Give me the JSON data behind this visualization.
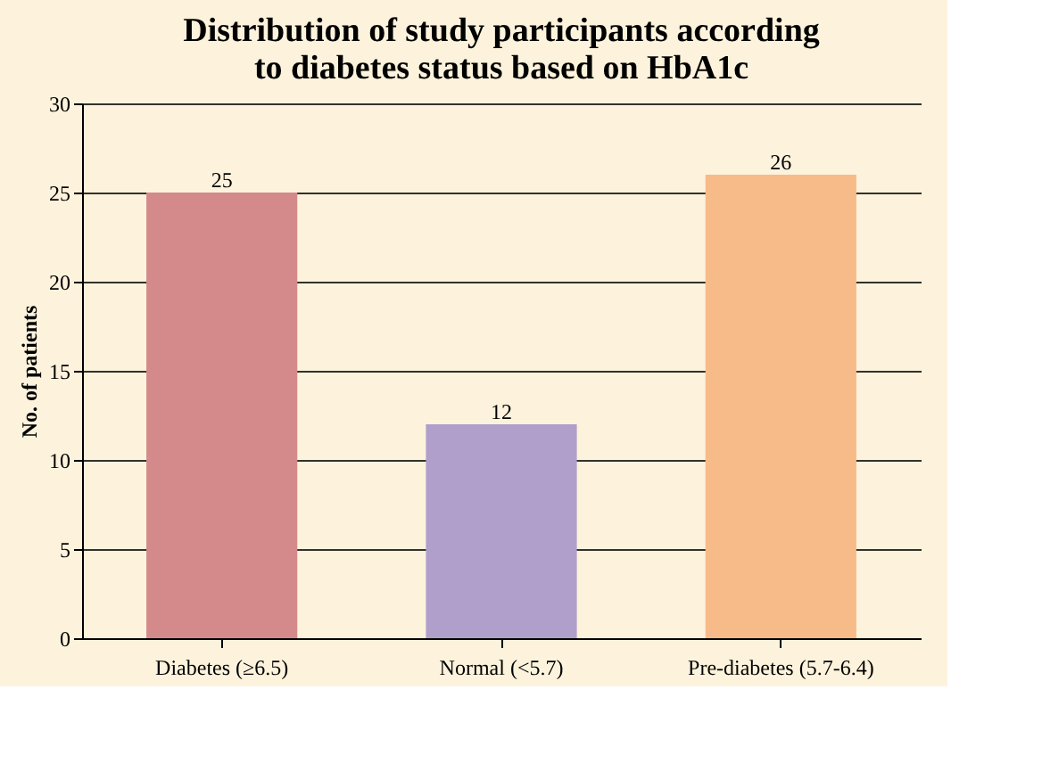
{
  "chart_data": {
    "type": "bar",
    "title": "Distribution of study participants according\nto diabetes status based on HbA1c",
    "ylabel": "No. of patients",
    "categories": [
      "Diabetes (≥6.5)",
      "Normal (<5.7)",
      "Pre-diabetes (5.7-6.4)"
    ],
    "values": [
      25,
      12,
      26
    ],
    "colors": [
      "#d48a8a",
      "#b09fca",
      "#f7bb8a"
    ],
    "ylim": [
      0,
      30
    ],
    "yticks": [
      0,
      5,
      10,
      15,
      20,
      25,
      30
    ],
    "grid": "y",
    "data_labels": true
  }
}
